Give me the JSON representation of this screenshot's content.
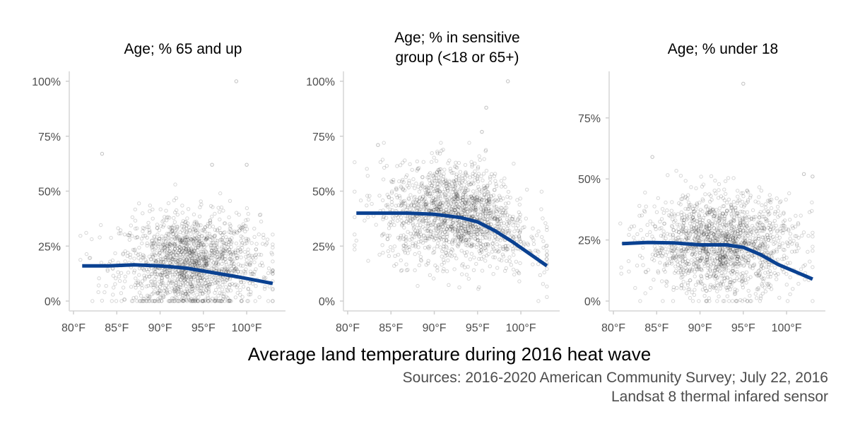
{
  "chart_data": [
    {
      "type": "scatter",
      "title": [
        "Age; % 65 and up"
      ],
      "xlim": [
        80,
        103.5
      ],
      "ylim": [
        0,
        1.0
      ],
      "x_ticks": [
        80,
        85,
        90,
        95,
        100
      ],
      "x_tick_labels": [
        "80°F",
        "85°F",
        "90°F",
        "95°F",
        "100°F"
      ],
      "y_ticks": [
        0,
        0.25,
        0.5,
        0.75,
        1.0
      ],
      "y_tick_labels": [
        "0%",
        "25%",
        "50%",
        "75%",
        "100%"
      ],
      "points": {
        "count": 1600,
        "x_center": 93.5,
        "x_spread": 4.0,
        "y_center": 0.17,
        "y_spread": 0.11,
        "outliers": [
          [
            83.3,
            0.67
          ],
          [
            98.8,
            1.0
          ],
          [
            100.0,
            0.62
          ],
          [
            96.0,
            0.62
          ]
        ]
      },
      "smooth": {
        "x": [
          81,
          84,
          87,
          90,
          93,
          96,
          99,
          103
        ],
        "y": [
          0.16,
          0.16,
          0.165,
          0.16,
          0.15,
          0.13,
          0.11,
          0.08
        ]
      }
    },
    {
      "type": "scatter",
      "title": [
        "Age; % in sensitive",
        "group (<18 or 65+)"
      ],
      "xlim": [
        80,
        103.5
      ],
      "ylim": [
        0,
        1.0
      ],
      "x_ticks": [
        80,
        85,
        90,
        95,
        100
      ],
      "x_tick_labels": [
        "80°F",
        "85°F",
        "90°F",
        "95°F",
        "100°F"
      ],
      "y_ticks": [
        0,
        0.25,
        0.5,
        0.75,
        1.0
      ],
      "y_tick_labels": [
        "0%",
        "25%",
        "50%",
        "75%",
        "100%"
      ],
      "points": {
        "count": 1600,
        "x_center": 92.5,
        "x_spread": 4.2,
        "y_center": 0.4,
        "y_spread": 0.11,
        "outliers": [
          [
            83.5,
            0.71
          ],
          [
            98.5,
            1.0
          ],
          [
            96.0,
            0.88
          ],
          [
            95.5,
            0.77
          ]
        ]
      },
      "smooth": {
        "x": [
          81,
          84,
          87,
          90,
          93,
          95,
          97,
          99,
          101,
          103
        ],
        "y": [
          0.4,
          0.4,
          0.4,
          0.395,
          0.38,
          0.36,
          0.32,
          0.27,
          0.215,
          0.16
        ]
      }
    },
    {
      "type": "scatter",
      "title": [
        "Age; % under 18"
      ],
      "xlim": [
        80,
        103.5
      ],
      "ylim": [
        0,
        0.9
      ],
      "x_ticks": [
        80,
        85,
        90,
        95,
        100
      ],
      "x_tick_labels": [
        "80°F",
        "85°F",
        "90°F",
        "95°F",
        "100°F"
      ],
      "y_ticks": [
        0,
        0.25,
        0.5,
        0.75
      ],
      "y_tick_labels": [
        "0%",
        "25%",
        "50%",
        "75%"
      ],
      "points": {
        "count": 1600,
        "x_center": 92.5,
        "x_spread": 4.2,
        "y_center": 0.23,
        "y_spread": 0.1,
        "outliers": [
          [
            95.0,
            0.89
          ],
          [
            84.5,
            0.59
          ],
          [
            102.0,
            0.52
          ],
          [
            103.0,
            0.51
          ]
        ]
      },
      "smooth": {
        "x": [
          81,
          84,
          87,
          90,
          93,
          95,
          97,
          99,
          101,
          103
        ],
        "y": [
          0.235,
          0.24,
          0.238,
          0.23,
          0.23,
          0.22,
          0.19,
          0.15,
          0.12,
          0.09
        ]
      }
    }
  ],
  "xlabel": "Average land temperature during 2016 heat wave",
  "caption": {
    "line1": "Sources: 2016-2020 American Community Survey; July 22, 2016",
    "line2": "Landsat 8 thermal infared sensor"
  },
  "colors": {
    "smooth_line": "#0a4191",
    "points": "#000000",
    "axis": "#e0e0e0"
  }
}
